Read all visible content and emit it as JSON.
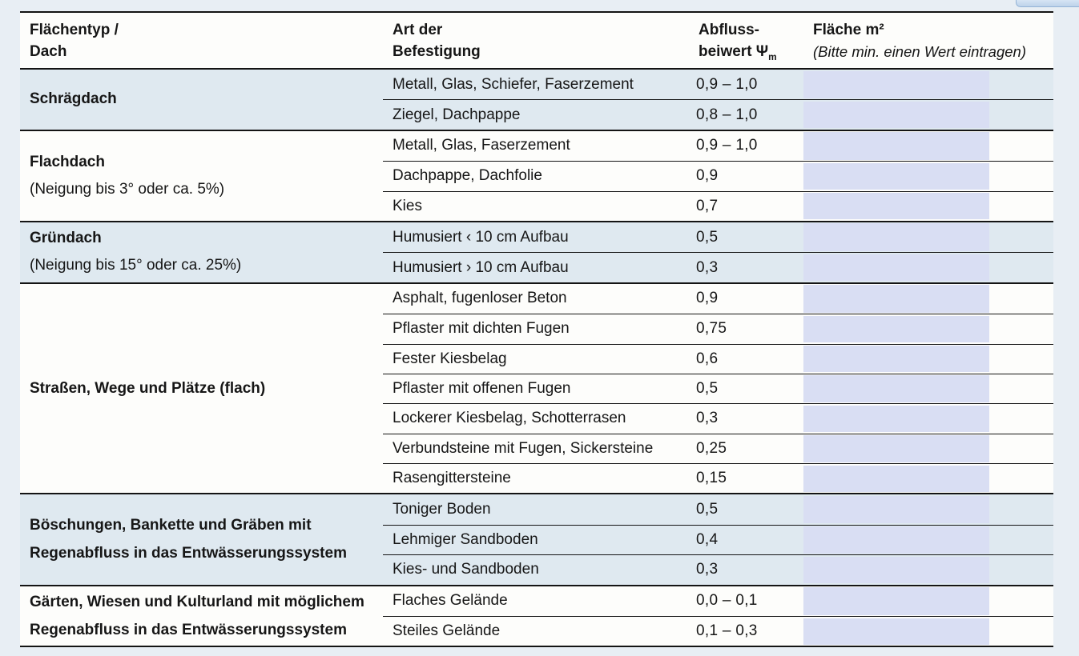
{
  "page": {
    "background_color": "#e8eef4",
    "input_field_color": "#d9def3",
    "tint_row_color": "#dfe9f0",
    "border_color": "#141414"
  },
  "table": {
    "header": {
      "col1_line1": "Flächentyp /",
      "col1_line2": "Dach",
      "col2_line1": "Art der",
      "col2_line2": "Befestigung",
      "col3_line1": "Abfluss-",
      "col3_line2_prefix": "beiwert Ψ",
      "col3_subscript": "m",
      "col4_line1": "Fläche m²",
      "col4_line2": "(Bitte min. einen Wert eintragen)"
    },
    "groups": [
      {
        "title": "Schrägdach",
        "rows": [
          {
            "befestigung": "Metall, Glas, Schiefer, Faserzement",
            "abflussbeiwert": "0,9 – 1,0",
            "flaeche_value": ""
          },
          {
            "befestigung": "Ziegel, Dachpappe",
            "abflussbeiwert": "0,8 – 1,0",
            "flaeche_value": ""
          }
        ]
      },
      {
        "title": "Flachdach",
        "subtitle": "(Neigung bis 3° oder ca. 5%)",
        "rows": [
          {
            "befestigung": "Metall, Glas, Faserzement",
            "abflussbeiwert": "0,9 – 1,0",
            "flaeche_value": ""
          },
          {
            "befestigung": "Dachpappe, Dachfolie",
            "abflussbeiwert": "0,9",
            "flaeche_value": ""
          },
          {
            "befestigung": "Kies",
            "abflussbeiwert": "0,7",
            "flaeche_value": ""
          }
        ]
      },
      {
        "title": "Gründach",
        "subtitle": "(Neigung bis 15° oder ca. 25%)",
        "rows": [
          {
            "befestigung": "Humusiert ‹ 10 cm Aufbau",
            "abflussbeiwert": "0,5",
            "flaeche_value": ""
          },
          {
            "befestigung": "Humusiert › 10 cm Aufbau",
            "abflussbeiwert": "0,3",
            "flaeche_value": ""
          }
        ]
      },
      {
        "title": "Straßen, Wege und Plätze (flach)",
        "rows": [
          {
            "befestigung": "Asphalt, fugenloser Beton",
            "abflussbeiwert": "0,9",
            "flaeche_value": ""
          },
          {
            "befestigung": "Pflaster mit dichten Fugen",
            "abflussbeiwert": "0,75",
            "flaeche_value": ""
          },
          {
            "befestigung": "Fester Kiesbelag",
            "abflussbeiwert": "0,6",
            "flaeche_value": ""
          },
          {
            "befestigung": "Pflaster mit offenen Fugen",
            "abflussbeiwert": "0,5",
            "flaeche_value": ""
          },
          {
            "befestigung": "Lockerer Kiesbelag, Schotterrasen",
            "abflussbeiwert": "0,3",
            "flaeche_value": ""
          },
          {
            "befestigung": "Verbundsteine mit Fugen, Sickersteine",
            "abflussbeiwert": "0,25",
            "flaeche_value": ""
          },
          {
            "befestigung": "Rasengittersteine",
            "abflussbeiwert": "0,15",
            "flaeche_value": ""
          }
        ]
      },
      {
        "title": "Böschungen, Bankette und Gräben mit",
        "title_line2": "Regenabfluss in das Entwässerungssystem",
        "rows": [
          {
            "befestigung": "Toniger Boden",
            "abflussbeiwert": "0,5",
            "flaeche_value": ""
          },
          {
            "befestigung": "Lehmiger Sandboden",
            "abflussbeiwert": "0,4",
            "flaeche_value": ""
          },
          {
            "befestigung": "Kies- und Sandboden",
            "abflussbeiwert": "0,3",
            "flaeche_value": ""
          }
        ]
      },
      {
        "title": "Gärten, Wiesen und Kulturland mit möglichem",
        "title_line2": "Regenabfluss in das Entwässerungssystem",
        "rows": [
          {
            "befestigung": "Flaches Gelände",
            "abflussbeiwert": "0,0 – 0,1",
            "flaeche_value": ""
          },
          {
            "befestigung": "Steiles Gelände",
            "abflussbeiwert": "0,1 – 0,3",
            "flaeche_value": ""
          }
        ]
      }
    ]
  }
}
